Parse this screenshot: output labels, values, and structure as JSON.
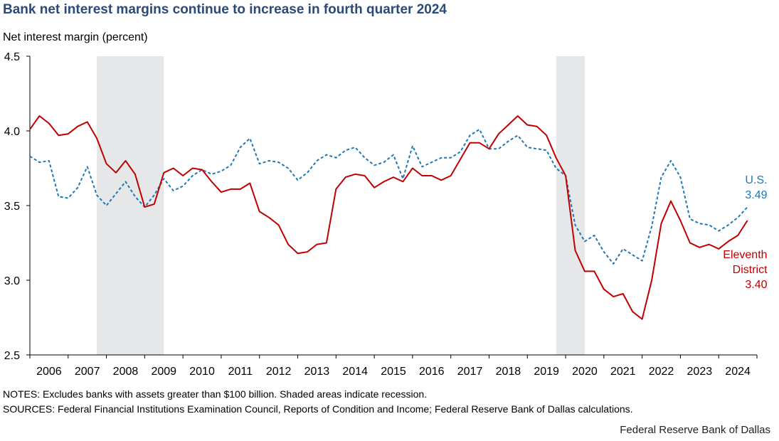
{
  "header": {
    "title": "Bank net interest margins continue to increase in fourth quarter 2024"
  },
  "footer": {
    "notes": "NOTES: Excludes banks with assets greater than $100 billion. Shaded areas indicate recession.",
    "sources": "SOURCES: Federal Financial Institutions  Examination Council, Reports of Condition and Income; Federal Reserve Bank of Dallas calculations.",
    "credit": "Federal Reserve Bank of Dallas"
  },
  "chart_data": {
    "type": "line",
    "title": "Bank net interest margins continue to increase in fourth quarter 2024",
    "ylabel": "Net interest margin (percent)",
    "xlabel": "",
    "ylim": [
      2.5,
      4.5
    ],
    "yticks": [
      "2.5",
      "3.0",
      "3.5",
      "4.0",
      "4.5"
    ],
    "xlim": [
      2006.0,
      2025.0
    ],
    "xticks": [
      "2006",
      "2007",
      "2008",
      "2009",
      "2010",
      "2011",
      "2012",
      "2013",
      "2014",
      "2015",
      "2016",
      "2017",
      "2018",
      "2019",
      "2020",
      "2021",
      "2022",
      "2023",
      "2024"
    ],
    "recessions": [
      [
        2007.75,
        2009.5
      ],
      [
        2019.75,
        2020.5
      ]
    ],
    "colors": {
      "us": "#1f77b4",
      "eleventh": "#c00000",
      "recession": "#e6e7e8"
    },
    "series": [
      {
        "name": "U.S.",
        "annotation": [
          "U.S.",
          "3.49"
        ],
        "style": "dashed",
        "x_start": 2006.0,
        "x_step": 0.25,
        "values": [
          3.83,
          3.79,
          3.8,
          3.56,
          3.55,
          3.62,
          3.76,
          3.57,
          3.5,
          3.58,
          3.66,
          3.56,
          3.49,
          3.57,
          3.68,
          3.6,
          3.63,
          3.7,
          3.74,
          3.71,
          3.73,
          3.77,
          3.89,
          3.95,
          3.78,
          3.8,
          3.79,
          3.75,
          3.67,
          3.72,
          3.8,
          3.84,
          3.82,
          3.87,
          3.89,
          3.82,
          3.77,
          3.79,
          3.84,
          3.68,
          3.9,
          3.76,
          3.79,
          3.82,
          3.82,
          3.86,
          3.97,
          4.01,
          3.88,
          3.88,
          3.93,
          3.97,
          3.89,
          3.88,
          3.87,
          3.75,
          3.7,
          3.37,
          3.26,
          3.3,
          3.19,
          3.11,
          3.21,
          3.17,
          3.13,
          3.36,
          3.69,
          3.8,
          3.69,
          3.41,
          3.38,
          3.37,
          3.33,
          3.37,
          3.42,
          3.49
        ]
      },
      {
        "name": "Eleventh District",
        "annotation": [
          "Eleventh",
          "District",
          "3.40"
        ],
        "style": "solid",
        "x_start": 2006.0,
        "x_step": 0.25,
        "values": [
          4.01,
          4.1,
          4.05,
          3.97,
          3.98,
          4.03,
          4.06,
          3.95,
          3.78,
          3.72,
          3.8,
          3.71,
          3.49,
          3.51,
          3.72,
          3.75,
          3.7,
          3.75,
          3.74,
          3.66,
          3.59,
          3.61,
          3.61,
          3.65,
          3.46,
          3.42,
          3.37,
          3.24,
          3.18,
          3.19,
          3.24,
          3.25,
          3.61,
          3.69,
          3.71,
          3.7,
          3.62,
          3.66,
          3.69,
          3.66,
          3.75,
          3.7,
          3.7,
          3.67,
          3.7,
          3.81,
          3.92,
          3.92,
          3.88,
          3.98,
          4.04,
          4.1,
          4.04,
          4.03,
          3.97,
          3.82,
          3.7,
          3.2,
          3.06,
          3.06,
          2.94,
          2.89,
          2.91,
          2.79,
          2.74,
          3.0,
          3.38,
          3.53,
          3.4,
          3.25,
          3.22,
          3.24,
          3.21,
          3.26,
          3.3,
          3.4
        ]
      }
    ]
  }
}
